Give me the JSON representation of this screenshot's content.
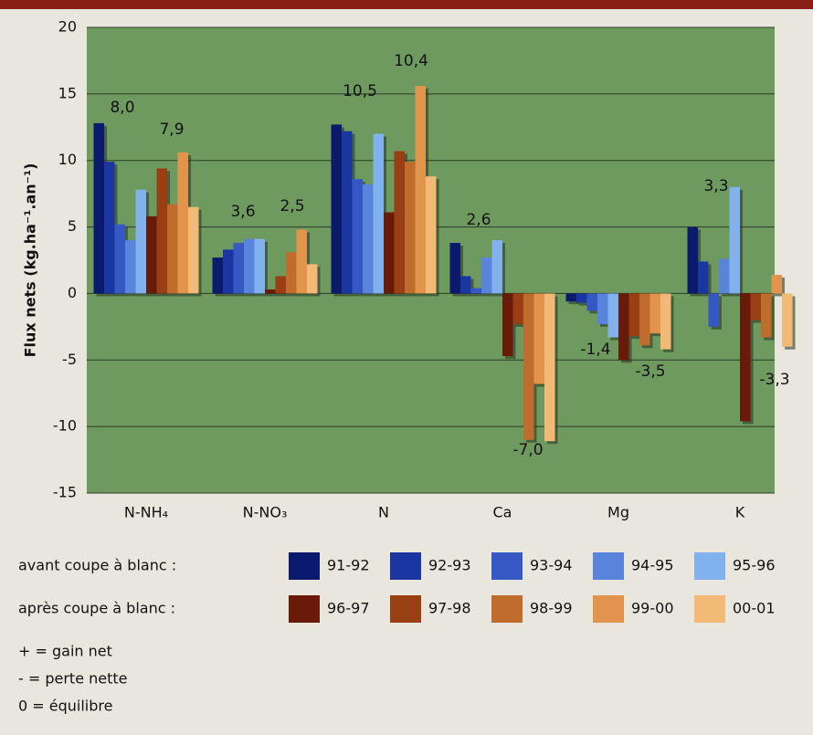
{
  "chart_data": {
    "type": "bar",
    "ylabel": "Flux nets (kg.ha⁻¹.an⁻¹)",
    "categories": [
      "N-NH₄",
      "N-NO₃",
      "N",
      "Ca",
      "Mg",
      "K"
    ],
    "ylim": [
      -15,
      20
    ],
    "yticks": [
      -15,
      -10,
      -5,
      0,
      5,
      10,
      15,
      20
    ],
    "grid": true,
    "legend_groups": [
      "avant coupe à blanc :",
      "après coupe à blanc :"
    ],
    "series": [
      {
        "name": "91-92",
        "color": "#0b1a6c",
        "values": [
          12.8,
          2.7,
          12.7,
          3.8,
          -0.6,
          5.0
        ]
      },
      {
        "name": "92-93",
        "color": "#1a36a0",
        "values": [
          9.9,
          3.3,
          12.2,
          1.3,
          -0.7,
          2.4
        ]
      },
      {
        "name": "93-94",
        "color": "#3658c4",
        "values": [
          5.2,
          3.8,
          8.6,
          0.4,
          -1.3,
          -2.5
        ]
      },
      {
        "name": "94-95",
        "color": "#5a84dc",
        "values": [
          4.0,
          4.1,
          8.2,
          2.7,
          -2.3,
          2.6
        ]
      },
      {
        "name": "95-96",
        "color": "#82b2ee",
        "values": [
          7.8,
          4.1,
          12.0,
          4.0,
          -3.3,
          8.0
        ]
      },
      {
        "name": "96-97",
        "color": "#6a1a08",
        "values": [
          5.8,
          0.3,
          6.1,
          -4.7,
          -5.0,
          -9.6
        ]
      },
      {
        "name": "97-98",
        "color": "#9a3e14",
        "values": [
          9.4,
          1.3,
          10.7,
          -2.3,
          -3.2,
          -2.0
        ]
      },
      {
        "name": "98-99",
        "color": "#c06c2c",
        "values": [
          6.7,
          3.1,
          9.9,
          -11.0,
          -3.9,
          -3.3
        ]
      },
      {
        "name": "99-00",
        "color": "#e2944c",
        "values": [
          10.6,
          4.8,
          15.6,
          -6.8,
          -3.0,
          1.4
        ]
      },
      {
        "name": "00-01",
        "color": "#f2ba76",
        "values": [
          6.5,
          2.2,
          8.8,
          -11.1,
          -4.2,
          -4.0
        ]
      }
    ],
    "annotations": [
      "8,0",
      "7,9",
      "3,6",
      "2,5",
      "10,5",
      "10,4",
      "2,6",
      "-7,0",
      "-1,4",
      "-3,5",
      "3,3",
      "-3,3"
    ],
    "notes": [
      "+ = gain net",
      "- = perte nette",
      "0 = équilibre"
    ]
  }
}
